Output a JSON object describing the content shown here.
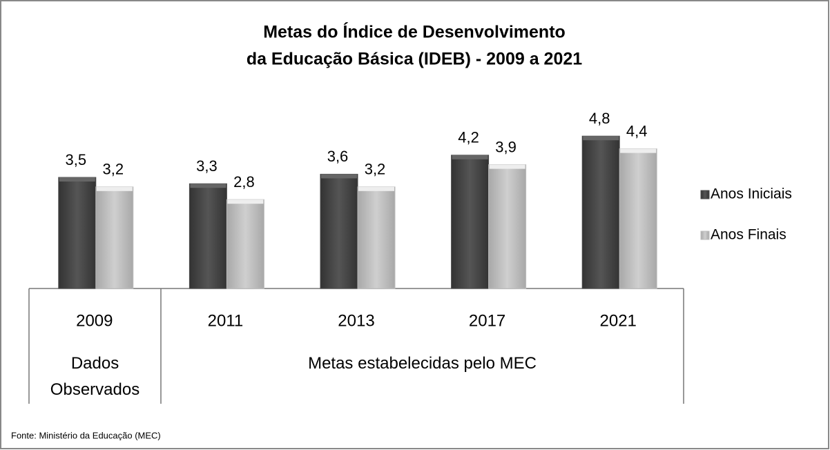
{
  "chart_data": {
    "type": "bar",
    "title": "Metas do Índice de Desenvolvimento",
    "subtitle": "da Educação Básica (IDEB) - 2009 a 2021",
    "categories": [
      "2009",
      "2011",
      "2013",
      "2017",
      "2021"
    ],
    "group_labels": [
      "Dados Observados",
      "Metas estabelecidas pelo MEC"
    ],
    "series": [
      {
        "name": "Anos Iniciais",
        "color": "#4a4a4a",
        "values": [
          3.5,
          3.3,
          3.6,
          4.2,
          4.8
        ],
        "value_labels": [
          "3,5",
          "3,3",
          "3,6",
          "4,2",
          "4,8"
        ]
      },
      {
        "name": "Anos Finais",
        "color": "#bdbdbd",
        "values": [
          3.2,
          2.8,
          3.2,
          3.9,
          4.4
        ],
        "value_labels": [
          "3,2",
          "2,8",
          "3,2",
          "3,9",
          "4,4"
        ]
      }
    ],
    "legend": "right",
    "source": "Fonte: Ministério da Educação (MEC)"
  }
}
